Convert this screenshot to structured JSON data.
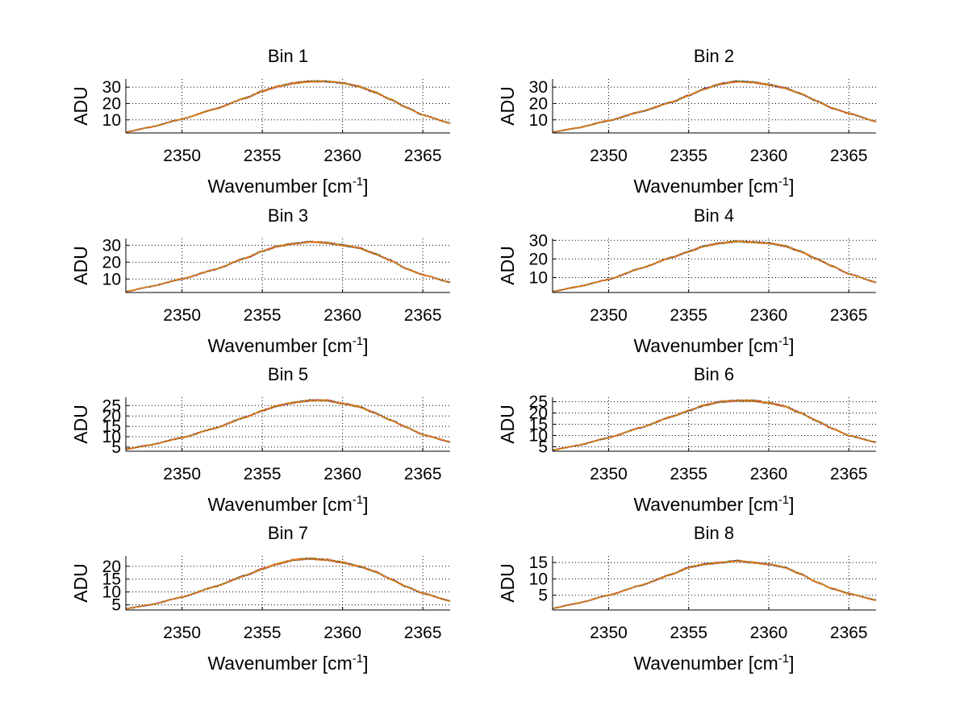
{
  "figure": {
    "background": "#ffffff",
    "axes_color": "#000000",
    "grid_color": "#000000",
    "series_colors": [
      "#0000ff",
      "#008000",
      "#ff0000",
      "#00bfbf",
      "#bf00bf",
      "#bfbf00",
      "#404040",
      "#ff7f00"
    ]
  },
  "chart_data": [
    {
      "type": "line",
      "title": "Bin 1",
      "xlabel": "Wavenumber [cm",
      "xlabel_sup": "-1",
      "xlabel_end": "]",
      "ylabel": "ADU",
      "xlim": [
        2346.5,
        2366.7
      ],
      "ylim": [
        2,
        35
      ],
      "xticks": [
        2350,
        2355,
        2360,
        2365
      ],
      "yticks": [
        10,
        20,
        30
      ],
      "grid": true,
      "x": [
        2346.5,
        2348,
        2350,
        2352,
        2354,
        2355,
        2356,
        2357,
        2358,
        2359,
        2360,
        2361,
        2362,
        2363,
        2364,
        2365,
        2366.7
      ],
      "y": [
        2.5,
        5.5,
        10.5,
        16.5,
        23.5,
        27.5,
        30.5,
        32.5,
        33.5,
        33.5,
        32.5,
        30.5,
        27.0,
        22.5,
        17.5,
        13.0,
        8.0
      ]
    },
    {
      "type": "line",
      "title": "Bin 2",
      "xlabel": "Wavenumber [cm",
      "xlabel_sup": "-1",
      "xlabel_end": "]",
      "ylabel": "ADU",
      "xlim": [
        2346.5,
        2366.7
      ],
      "ylim": [
        2,
        35
      ],
      "xticks": [
        2350,
        2355,
        2360,
        2365
      ],
      "yticks": [
        10,
        20,
        30
      ],
      "grid": true,
      "x": [
        2346.5,
        2348,
        2350,
        2352,
        2354,
        2355,
        2356,
        2357,
        2358,
        2359,
        2360,
        2361,
        2362,
        2363,
        2364,
        2365,
        2366.7
      ],
      "y": [
        2.5,
        5.0,
        9.5,
        15.0,
        21.0,
        25.0,
        29.0,
        32.0,
        33.5,
        33.0,
        31.5,
        29.5,
        26.0,
        21.5,
        17.0,
        14.0,
        9.0
      ]
    },
    {
      "type": "line",
      "title": "Bin 3",
      "xlabel": "Wavenumber [cm",
      "xlabel_sup": "-1",
      "xlabel_end": "]",
      "ylabel": "ADU",
      "xlim": [
        2346.5,
        2366.7
      ],
      "ylim": [
        2,
        34
      ],
      "xticks": [
        2350,
        2355,
        2360,
        2365
      ],
      "yticks": [
        10,
        20,
        30
      ],
      "grid": true,
      "x": [
        2346.5,
        2348,
        2350,
        2352,
        2354,
        2355,
        2356,
        2357,
        2358,
        2359,
        2360,
        2361,
        2362,
        2363,
        2364,
        2365,
        2366.7
      ],
      "y": [
        2.5,
        5.5,
        10.0,
        15.5,
        22.5,
        26.5,
        29.5,
        31.0,
        32.0,
        31.5,
        30.0,
        28.5,
        25.0,
        21.0,
        16.0,
        12.5,
        8.0
      ]
    },
    {
      "type": "line",
      "title": "Bin 4",
      "xlabel": "Wavenumber [cm",
      "xlabel_sup": "-1",
      "xlabel_end": "]",
      "ylabel": "ADU",
      "xlim": [
        2346.5,
        2366.7
      ],
      "ylim": [
        2,
        31
      ],
      "xticks": [
        2350,
        2355,
        2360,
        2365
      ],
      "yticks": [
        10,
        20,
        30
      ],
      "grid": true,
      "x": [
        2346.5,
        2348,
        2350,
        2352,
        2354,
        2355,
        2356,
        2357,
        2358,
        2359,
        2360,
        2361,
        2362,
        2363,
        2364,
        2365,
        2366.7
      ],
      "y": [
        2.5,
        5.0,
        9.0,
        15.0,
        21.0,
        24.0,
        27.0,
        28.5,
        29.5,
        29.0,
        28.5,
        27.0,
        24.0,
        20.0,
        16.0,
        12.0,
        7.5
      ]
    },
    {
      "type": "line",
      "title": "Bin 5",
      "xlabel": "Wavenumber [cm",
      "xlabel_sup": "-1",
      "xlabel_end": "]",
      "ylabel": "ADU",
      "xlim": [
        2346.5,
        2366.7
      ],
      "ylim": [
        3,
        29
      ],
      "xticks": [
        2350,
        2355,
        2360,
        2365
      ],
      "yticks": [
        5,
        10,
        15,
        20,
        25
      ],
      "grid": true,
      "x": [
        2346.5,
        2348,
        2350,
        2352,
        2354,
        2355,
        2356,
        2357,
        2358,
        2359,
        2360,
        2361,
        2362,
        2363,
        2364,
        2365,
        2366.7
      ],
      "y": [
        4.0,
        6.0,
        9.5,
        14.0,
        19.5,
        22.5,
        25.0,
        26.5,
        27.5,
        27.5,
        26.0,
        24.5,
        21.5,
        18.0,
        14.5,
        11.0,
        7.5
      ]
    },
    {
      "type": "line",
      "title": "Bin 6",
      "xlabel": "Wavenumber [cm",
      "xlabel_sup": "-1",
      "xlabel_end": "]",
      "ylabel": "ADU",
      "xlim": [
        2346.5,
        2366.7
      ],
      "ylim": [
        3,
        27
      ],
      "xticks": [
        2350,
        2355,
        2360,
        2365
      ],
      "yticks": [
        5,
        10,
        15,
        20,
        25
      ],
      "grid": true,
      "x": [
        2346.5,
        2348,
        2350,
        2352,
        2354,
        2355,
        2356,
        2357,
        2358,
        2359,
        2360,
        2361,
        2362,
        2363,
        2364,
        2365,
        2366.7
      ],
      "y": [
        3.5,
        5.5,
        9.0,
        13.5,
        18.5,
        21.0,
        23.5,
        25.0,
        25.5,
        25.5,
        24.5,
        23.0,
        20.0,
        16.5,
        13.0,
        10.0,
        7.0
      ]
    },
    {
      "type": "line",
      "title": "Bin 7",
      "xlabel": "Wavenumber [cm",
      "xlabel_sup": "-1",
      "xlabel_end": "]",
      "ylabel": "ADU",
      "xlim": [
        2346.5,
        2366.7
      ],
      "ylim": [
        3,
        24
      ],
      "xticks": [
        2350,
        2355,
        2360,
        2365
      ],
      "yticks": [
        5,
        10,
        15,
        20
      ],
      "grid": true,
      "x": [
        2346.5,
        2348,
        2350,
        2352,
        2354,
        2355,
        2356,
        2357,
        2358,
        2359,
        2360,
        2361,
        2362,
        2363,
        2364,
        2365,
        2366.7
      ],
      "y": [
        3.5,
        5.0,
        8.0,
        12.0,
        16.5,
        19.0,
        21.0,
        22.5,
        23.0,
        22.5,
        21.5,
        20.0,
        18.0,
        15.0,
        12.0,
        9.5,
        6.5
      ]
    },
    {
      "type": "line",
      "title": "Bin 8",
      "xlabel": "Wavenumber [cm",
      "xlabel_sup": "-1",
      "xlabel_end": "]",
      "ylabel": "ADU",
      "xlim": [
        2346.5,
        2366.7
      ],
      "ylim": [
        0.5,
        17
      ],
      "xticks": [
        2350,
        2355,
        2360,
        2365
      ],
      "yticks": [
        5,
        10,
        15
      ],
      "grid": true,
      "x": [
        2346.5,
        2348,
        2350,
        2352,
        2354,
        2355,
        2356,
        2357,
        2358,
        2359,
        2360,
        2361,
        2362,
        2363,
        2364,
        2365,
        2366.7
      ],
      "y": [
        1.0,
        2.5,
        5.0,
        8.0,
        11.5,
        13.5,
        14.5,
        15.0,
        15.5,
        15.0,
        14.5,
        13.5,
        11.5,
        9.0,
        7.0,
        5.5,
        3.5
      ]
    }
  ]
}
